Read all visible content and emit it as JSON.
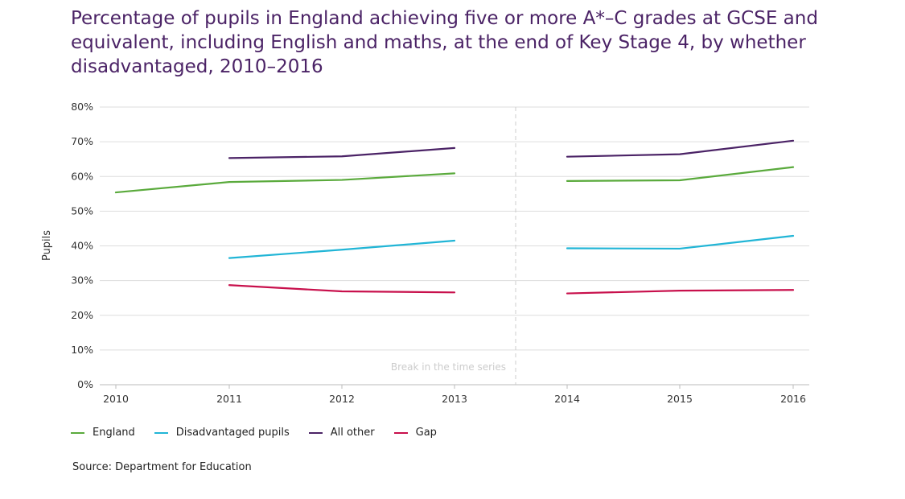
{
  "chart_data": {
    "type": "line",
    "title": "Percentage of pupils in England achieving five or more A*–C grades at GCSE and equivalent, including English and maths, at the end of Key Stage 4, by whether disadvantaged, 2010–2016",
    "xlabel": "",
    "ylabel": "Pupils",
    "x": [
      "2010",
      "2011",
      "2012",
      "2013",
      "2014",
      "2015",
      "2016"
    ],
    "ylim": [
      0,
      80
    ],
    "yticks": [
      "0%",
      "10%",
      "20%",
      "30%",
      "40%",
      "50%",
      "60%",
      "70%",
      "80%"
    ],
    "grid": true,
    "legend_position": "bottom",
    "series": [
      {
        "name": "England",
        "color": "#5aaa3c",
        "values": [
          55.4,
          58.4,
          59.0,
          60.9,
          58.7,
          58.9,
          62.7
        ]
      },
      {
        "name": "Disadvantaged pupils",
        "color": "#21b5d6",
        "values": [
          null,
          36.5,
          38.9,
          41.5,
          39.3,
          39.2,
          42.9
        ]
      },
      {
        "name": "All other",
        "color": "#4b2366",
        "values": [
          null,
          65.3,
          65.8,
          68.2,
          65.7,
          66.4,
          70.3
        ]
      },
      {
        "name": "Gap",
        "color": "#c8104c",
        "values": [
          null,
          28.7,
          26.9,
          26.6,
          26.3,
          27.1,
          27.3
        ]
      }
    ],
    "break": {
      "after_index": 3,
      "label": "Break in the time series"
    }
  },
  "source": "Source: Department for Education"
}
